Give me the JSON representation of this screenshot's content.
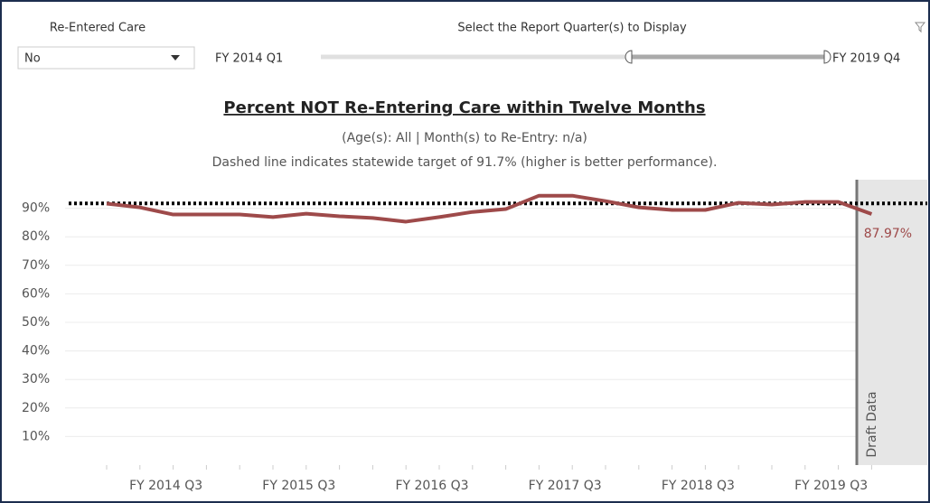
{
  "filter": {
    "label": "Re-Entered Care",
    "value": "No"
  },
  "slider": {
    "label": "Select the Report Quarter(s) to Display",
    "start": "FY 2014 Q1",
    "end": "FY 2019 Q4"
  },
  "chart_data": {
    "type": "line",
    "title": "Percent NOT Re-Entering Care within Twelve Months",
    "subtitle": "(Age(s): All | Month(s) to Re-Entry:  n/a)",
    "note": "Dashed line indicates statewide target of 91.7% (higher is better performance).",
    "target_line": 91.7,
    "band_label": "Draft Data",
    "categories": [
      null,
      null,
      "FY 2014 Q3",
      null,
      null,
      null,
      "FY 2015 Q3",
      null,
      null,
      null,
      "FY 2016 Q3",
      null,
      null,
      null,
      "FY 2017 Q3",
      null,
      null,
      null,
      "FY 2018 Q3",
      null,
      null,
      null,
      "FY 2019 Q3",
      null
    ],
    "series": [
      {
        "name": "Percent NOT Re-Entering",
        "color": "#9e4a4a",
        "values": [
          91.6,
          90.3,
          87.8,
          87.8,
          87.8,
          86.9,
          88.1,
          87.2,
          86.6,
          85.3,
          86.9,
          88.7,
          89.7,
          94.4,
          94.4,
          92.5,
          90.3,
          89.4,
          89.4,
          91.9,
          91.3,
          92.2,
          92.2,
          87.97
        ],
        "value_labels": [
          null,
          null,
          null,
          null,
          null,
          null,
          null,
          null,
          null,
          null,
          null,
          null,
          null,
          null,
          null,
          null,
          null,
          null,
          null,
          null,
          null,
          null,
          null,
          "87.97%"
        ]
      }
    ],
    "ylim": [
      0,
      100
    ],
    "yticks": [
      {
        "value": 10,
        "label": "10%"
      },
      {
        "value": 20,
        "label": "20%"
      },
      {
        "value": 30,
        "label": "30%"
      },
      {
        "value": 40,
        "label": "40%"
      },
      {
        "value": 50,
        "label": "50%"
      },
      {
        "value": 60,
        "label": "60%"
      },
      {
        "value": 70,
        "label": "70%"
      },
      {
        "value": 80,
        "label": "80%"
      },
      {
        "value": 90,
        "label": "90%"
      }
    ],
    "grid": true
  }
}
